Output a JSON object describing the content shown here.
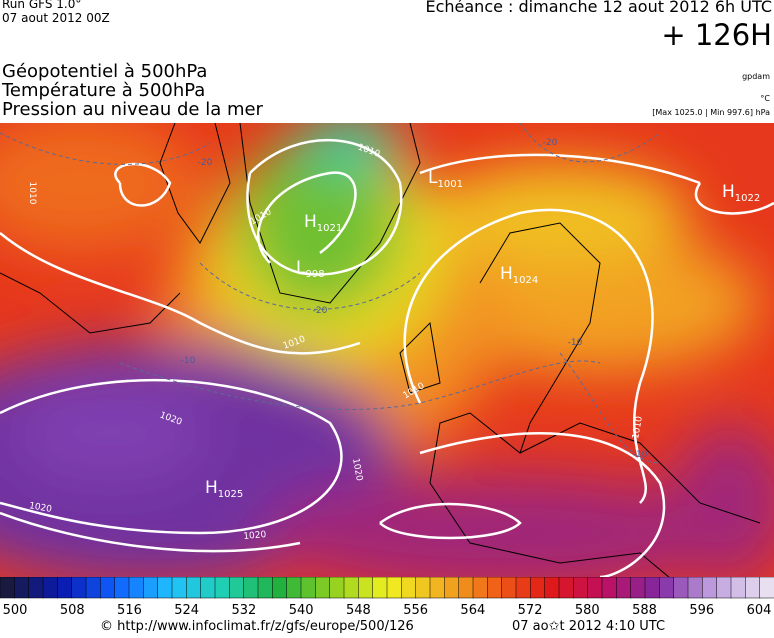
{
  "header": {
    "run": "Run GFS 1.0°",
    "run_date": "07 aout 2012 00Z",
    "valid": "Echéance : dimanche 12 aout 2012 6h UTC",
    "lead": "+ 126H",
    "titles": [
      "Géopotentiel à 500hPa",
      "Température à 500hPa",
      "Pression au niveau de la mer"
    ],
    "units": [
      "gpdam",
      "°C",
      "[Max 1025.0 | Min 997.6] hPa"
    ]
  },
  "map": {
    "centers": [
      {
        "type": "H",
        "value": 1021
      },
      {
        "type": "L",
        "value": 998
      },
      {
        "type": "L",
        "value": 1001
      },
      {
        "type": "H",
        "value": 1022
      },
      {
        "type": "H",
        "value": 1024
      },
      {
        "type": "H",
        "value": 1025
      }
    ],
    "isobar_labels": [
      1010,
      1010,
      1010,
      1010,
      1010,
      1010,
      1020,
      1020,
      1020,
      1020
    ],
    "temperature_labels": [
      -20,
      -20,
      -20,
      -10,
      -10,
      -10
    ]
  },
  "colorbar": {
    "ticks": [
      500,
      508,
      516,
      524,
      532,
      540,
      548,
      556,
      564,
      572,
      580,
      588,
      596,
      604
    ]
  },
  "footer": {
    "source": "© http://www.infoclimat.fr/z/gfs/europe/500/126",
    "generated": "07 ao✩t 2012  4:10 UTC"
  }
}
